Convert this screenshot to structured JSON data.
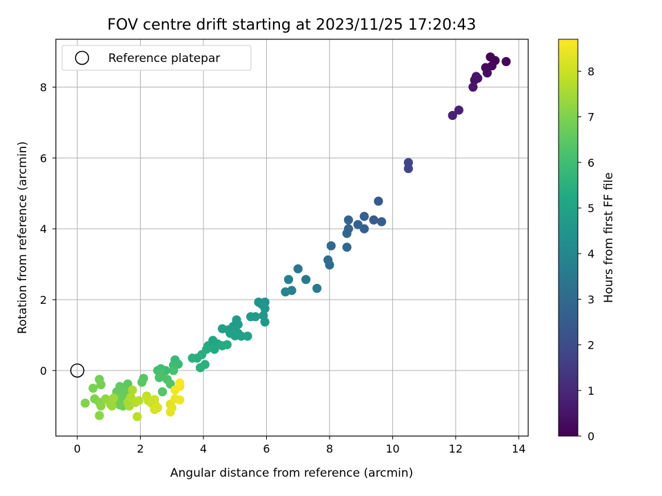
{
  "chart_data": {
    "type": "scatter",
    "title": "FOV centre drift starting at 2023/11/25 17:20:43",
    "xlabel": "Angular distance from reference (arcmin)",
    "ylabel": "Rotation from reference (arcmin)",
    "xlim": [
      -0.68,
      14.3
    ],
    "ylim": [
      -1.85,
      9.35
    ],
    "xticks": [
      0,
      2,
      4,
      6,
      8,
      10,
      12,
      14
    ],
    "yticks": [
      0,
      2,
      4,
      6,
      8
    ],
    "grid": true,
    "legend": {
      "placement": "top-left",
      "entries": [
        "Reference platepar"
      ]
    },
    "reference_point": {
      "x": 0,
      "y": 0
    },
    "colorbar": {
      "label": "Hours from first FF file",
      "range": [
        0,
        8.7
      ],
      "ticks": [
        0,
        1,
        2,
        3,
        4,
        5,
        6,
        7,
        8
      ],
      "colormap": "viridis"
    },
    "series": [
      {
        "points": [
          {
            "x": 13.1,
            "y": 8.85,
            "c": 0.05
          },
          {
            "x": 13.25,
            "y": 8.75,
            "c": 0.1
          },
          {
            "x": 13.6,
            "y": 8.72,
            "c": 0.15
          },
          {
            "x": 13.15,
            "y": 8.6,
            "c": 0.2
          },
          {
            "x": 12.95,
            "y": 8.55,
            "c": 0.25
          },
          {
            "x": 13.0,
            "y": 8.4,
            "c": 0.3
          },
          {
            "x": 12.65,
            "y": 8.3,
            "c": 0.4
          },
          {
            "x": 12.6,
            "y": 8.2,
            "c": 0.45
          },
          {
            "x": 12.7,
            "y": 8.25,
            "c": 0.5
          },
          {
            "x": 12.55,
            "y": 8.0,
            "c": 0.55
          },
          {
            "x": 12.1,
            "y": 7.35,
            "c": 0.8
          },
          {
            "x": 11.9,
            "y": 7.2,
            "c": 0.85
          },
          {
            "x": 10.5,
            "y": 5.87,
            "c": 1.8
          },
          {
            "x": 10.5,
            "y": 5.7,
            "c": 1.85
          },
          {
            "x": 9.55,
            "y": 4.78,
            "c": 2.4
          },
          {
            "x": 9.4,
            "y": 4.25,
            "c": 2.5
          },
          {
            "x": 9.65,
            "y": 4.2,
            "c": 2.55
          },
          {
            "x": 9.1,
            "y": 4.35,
            "c": 2.6
          },
          {
            "x": 9.1,
            "y": 4.0,
            "c": 2.65
          },
          {
            "x": 8.9,
            "y": 4.12,
            "c": 2.7
          },
          {
            "x": 8.6,
            "y": 4.25,
            "c": 2.75
          },
          {
            "x": 8.6,
            "y": 4.0,
            "c": 2.8
          },
          {
            "x": 8.55,
            "y": 3.87,
            "c": 2.85
          },
          {
            "x": 8.55,
            "y": 3.48,
            "c": 2.9
          },
          {
            "x": 8.05,
            "y": 3.52,
            "c": 2.95
          },
          {
            "x": 7.95,
            "y": 3.12,
            "c": 3.05
          },
          {
            "x": 8.0,
            "y": 2.98,
            "c": 3.1
          },
          {
            "x": 7.0,
            "y": 2.87,
            "c": 3.4
          },
          {
            "x": 7.25,
            "y": 2.57,
            "c": 3.5
          },
          {
            "x": 7.6,
            "y": 2.32,
            "c": 3.6
          },
          {
            "x": 6.7,
            "y": 2.57,
            "c": 3.7
          },
          {
            "x": 6.8,
            "y": 2.26,
            "c": 3.8
          },
          {
            "x": 6.6,
            "y": 2.22,
            "c": 3.9
          },
          {
            "x": 5.95,
            "y": 1.93,
            "c": 4.4
          },
          {
            "x": 5.75,
            "y": 1.93,
            "c": 4.45
          },
          {
            "x": 5.85,
            "y": 1.87,
            "c": 4.5
          },
          {
            "x": 5.95,
            "y": 1.75,
            "c": 4.55
          },
          {
            "x": 5.9,
            "y": 1.55,
            "c": 4.6
          },
          {
            "x": 5.95,
            "y": 1.37,
            "c": 4.65
          },
          {
            "x": 5.5,
            "y": 1.52,
            "c": 4.7
          },
          {
            "x": 5.65,
            "y": 1.52,
            "c": 4.72
          },
          {
            "x": 5.05,
            "y": 1.43,
            "c": 4.75
          },
          {
            "x": 5.1,
            "y": 1.3,
            "c": 4.8
          },
          {
            "x": 4.95,
            "y": 1.25,
            "c": 4.82
          },
          {
            "x": 4.8,
            "y": 1.15,
            "c": 4.85
          },
          {
            "x": 4.6,
            "y": 1.18,
            "c": 4.87
          },
          {
            "x": 4.85,
            "y": 1.05,
            "c": 4.9
          },
          {
            "x": 5.1,
            "y": 1.05,
            "c": 4.92
          },
          {
            "x": 5.0,
            "y": 0.98,
            "c": 4.95
          },
          {
            "x": 5.2,
            "y": 0.97,
            "c": 4.97
          },
          {
            "x": 5.4,
            "y": 0.97,
            "c": 5.0
          },
          {
            "x": 4.3,
            "y": 0.85,
            "c": 5.1
          },
          {
            "x": 4.45,
            "y": 0.75,
            "c": 5.15
          },
          {
            "x": 4.15,
            "y": 0.7,
            "c": 5.2
          },
          {
            "x": 4.35,
            "y": 0.6,
            "c": 5.25
          },
          {
            "x": 4.6,
            "y": 0.7,
            "c": 5.3
          },
          {
            "x": 4.75,
            "y": 0.73,
            "c": 5.35
          },
          {
            "x": 4.1,
            "y": 0.6,
            "c": 5.38
          },
          {
            "x": 3.95,
            "y": 0.45,
            "c": 5.4
          },
          {
            "x": 3.8,
            "y": 0.35,
            "c": 5.45
          },
          {
            "x": 3.65,
            "y": 0.35,
            "c": 5.48
          },
          {
            "x": 4.05,
            "y": 0.17,
            "c": 5.5
          },
          {
            "x": 3.9,
            "y": 0.08,
            "c": 5.52
          },
          {
            "x": 3.1,
            "y": 0.3,
            "c": 5.8
          },
          {
            "x": 3.2,
            "y": 0.18,
            "c": 5.85
          },
          {
            "x": 3.05,
            "y": 0.15,
            "c": 5.9
          },
          {
            "x": 2.8,
            "y": 0.0,
            "c": 5.95
          },
          {
            "x": 2.65,
            "y": 0.05,
            "c": 6.0
          },
          {
            "x": 2.55,
            "y": 0.0,
            "c": 6.05
          },
          {
            "x": 3.05,
            "y": 0.0,
            "c": 6.1
          },
          {
            "x": 2.65,
            "y": -0.1,
            "c": 6.15
          },
          {
            "x": 2.6,
            "y": -0.2,
            "c": 6.2
          },
          {
            "x": 2.85,
            "y": -0.25,
            "c": 6.25
          },
          {
            "x": 2.95,
            "y": -0.38,
            "c": 6.3
          },
          {
            "x": 2.7,
            "y": -0.6,
            "c": 6.35
          },
          {
            "x": 2.1,
            "y": -0.22,
            "c": 6.4
          },
          {
            "x": 2.05,
            "y": -0.33,
            "c": 6.45
          },
          {
            "x": 1.6,
            "y": -0.38,
            "c": 6.5
          },
          {
            "x": 1.35,
            "y": -0.45,
            "c": 6.55
          },
          {
            "x": 1.5,
            "y": -0.55,
            "c": 6.6
          },
          {
            "x": 1.25,
            "y": -0.6,
            "c": 6.62
          },
          {
            "x": 1.55,
            "y": -0.65,
            "c": 6.65
          },
          {
            "x": 1.3,
            "y": -0.7,
            "c": 6.68
          },
          {
            "x": 1.25,
            "y": -0.8,
            "c": 6.7
          },
          {
            "x": 1.4,
            "y": -0.85,
            "c": 6.72
          },
          {
            "x": 1.35,
            "y": -0.97,
            "c": 6.75
          },
          {
            "x": 1.45,
            "y": -1.0,
            "c": 6.78
          },
          {
            "x": 0.7,
            "y": -0.25,
            "c": 6.85
          },
          {
            "x": 0.75,
            "y": -0.4,
            "c": 6.9
          },
          {
            "x": 0.5,
            "y": -0.5,
            "c": 6.95
          },
          {
            "x": 0.55,
            "y": -0.8,
            "c": 7.0
          },
          {
            "x": 0.25,
            "y": -0.92,
            "c": 7.05
          },
          {
            "x": 0.7,
            "y": -0.9,
            "c": 7.1
          },
          {
            "x": 0.75,
            "y": -1.0,
            "c": 7.15
          },
          {
            "x": 0.7,
            "y": -1.27,
            "c": 7.2
          },
          {
            "x": 0.9,
            "y": -0.8,
            "c": 7.25
          },
          {
            "x": 1.0,
            "y": -0.85,
            "c": 7.3
          },
          {
            "x": 1.05,
            "y": -0.95,
            "c": 7.35
          },
          {
            "x": 1.1,
            "y": -1.0,
            "c": 7.4
          },
          {
            "x": 1.15,
            "y": -0.78,
            "c": 7.45
          },
          {
            "x": 1.6,
            "y": -0.9,
            "c": 7.5
          },
          {
            "x": 1.65,
            "y": -1.0,
            "c": 7.55
          },
          {
            "x": 1.75,
            "y": -0.55,
            "c": 7.6
          },
          {
            "x": 1.7,
            "y": -0.75,
            "c": 7.65
          },
          {
            "x": 1.85,
            "y": -0.9,
            "c": 7.7
          },
          {
            "x": 1.95,
            "y": -0.85,
            "c": 7.75
          },
          {
            "x": 1.9,
            "y": -1.3,
            "c": 7.8
          },
          {
            "x": 2.2,
            "y": -0.72,
            "c": 7.9
          },
          {
            "x": 2.25,
            "y": -0.85,
            "c": 7.95
          },
          {
            "x": 2.35,
            "y": -0.92,
            "c": 8.0
          },
          {
            "x": 2.45,
            "y": -0.82,
            "c": 8.05
          },
          {
            "x": 2.5,
            "y": -1.0,
            "c": 8.1
          },
          {
            "x": 2.45,
            "y": -1.1,
            "c": 8.15
          },
          {
            "x": 2.55,
            "y": -1.05,
            "c": 8.2
          },
          {
            "x": 2.95,
            "y": -0.95,
            "c": 8.3
          },
          {
            "x": 3.0,
            "y": -1.05,
            "c": 8.35
          },
          {
            "x": 2.95,
            "y": -1.17,
            "c": 8.4
          },
          {
            "x": 3.1,
            "y": -0.8,
            "c": 8.45
          },
          {
            "x": 3.25,
            "y": -0.83,
            "c": 8.5
          },
          {
            "x": 3.1,
            "y": -0.55,
            "c": 8.55
          },
          {
            "x": 3.25,
            "y": -0.45,
            "c": 8.6
          },
          {
            "x": 3.25,
            "y": -0.35,
            "c": 8.65
          }
        ]
      }
    ]
  }
}
